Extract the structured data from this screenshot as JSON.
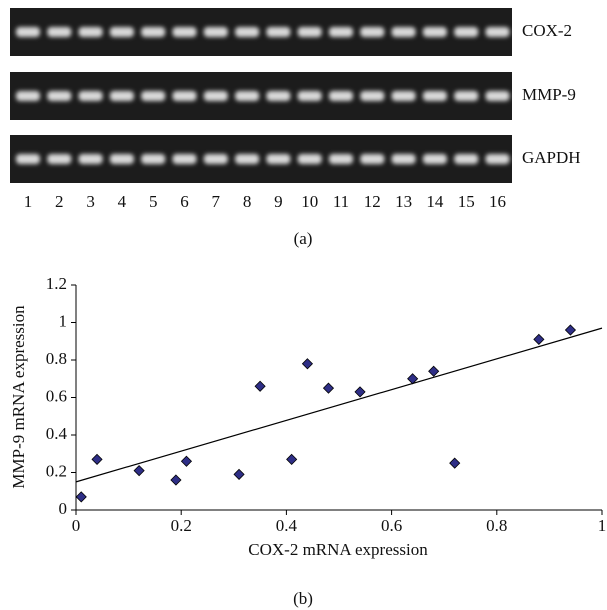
{
  "figure_a": {
    "rows": [
      "COX-2",
      "MMP-9",
      "GAPDH"
    ],
    "lanes": [
      "1",
      "2",
      "3",
      "4",
      "5",
      "6",
      "7",
      "8",
      "9",
      "10",
      "11",
      "12",
      "13",
      "14",
      "15",
      "16"
    ],
    "caption": "(a)"
  },
  "chart_data": {
    "type": "scatter",
    "x": [
      0.01,
      0.04,
      0.12,
      0.19,
      0.21,
      0.31,
      0.35,
      0.41,
      0.44,
      0.48,
      0.54,
      0.64,
      0.68,
      0.72,
      0.88,
      0.94
    ],
    "values": [
      0.07,
      0.27,
      0.21,
      0.16,
      0.26,
      0.19,
      0.66,
      0.27,
      0.78,
      0.65,
      0.63,
      0.7,
      0.74,
      0.25,
      0.91,
      0.96
    ],
    "color": "#2e2e86",
    "trendline": {
      "x": [
        0,
        1
      ],
      "y": [
        0.15,
        0.97
      ]
    },
    "xlabel": "COX-2 mRNA expression",
    "ylabel": "MMP-9 mRNA expression",
    "xlim": [
      0,
      1
    ],
    "ylim": [
      0,
      1.2
    ],
    "xticks": [
      0,
      0.2,
      0.4,
      0.6,
      0.8,
      1
    ],
    "yticks": [
      0,
      0.2,
      0.4,
      0.6,
      0.8,
      1,
      1.2
    ],
    "caption": "(b)"
  }
}
